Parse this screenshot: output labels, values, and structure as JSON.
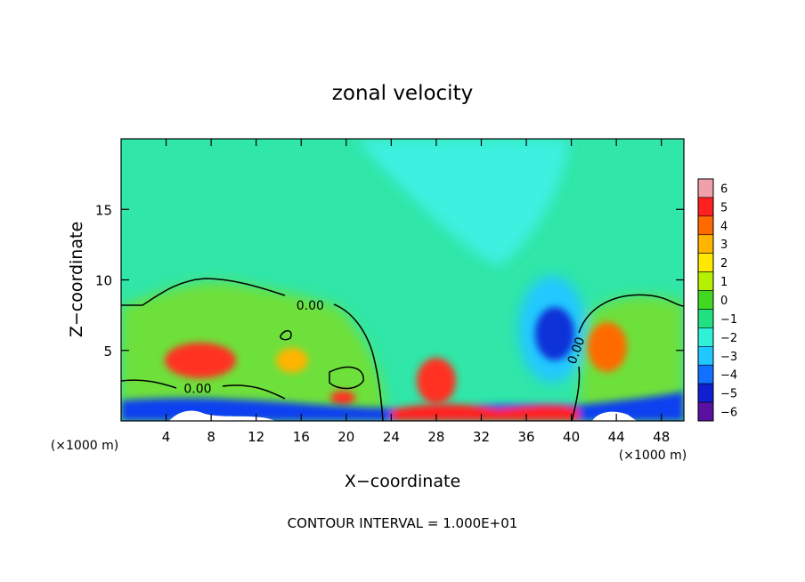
{
  "chart_data": {
    "type": "heatmap",
    "title": "zonal velocity",
    "xlabel": "X−coordinate",
    "ylabel": "Z−coordinate",
    "x_unit_label": "(×1000 m)",
    "x_unit_label_right": "(×1000 m)",
    "xlim": [
      0,
      50
    ],
    "ylim": [
      0,
      20
    ],
    "x_ticks": [
      "4",
      "8",
      "12",
      "16",
      "20",
      "24",
      "28",
      "32",
      "36",
      "40",
      "44",
      "48"
    ],
    "y_ticks": [
      "5",
      "10",
      "15"
    ],
    "colorbar": {
      "levels": [
        "6",
        "5",
        "4",
        "3",
        "2",
        "1",
        "0",
        "−1",
        "−2",
        "−3",
        "−4",
        "−5",
        "−6"
      ],
      "colors": [
        "#f0a0a8",
        "#ff2020",
        "#ff6a00",
        "#ffb400",
        "#ffe800",
        "#b4f000",
        "#40d820",
        "#20e080",
        "#30f0d8",
        "#20c8ff",
        "#1070ff",
        "#1020d0",
        "#5a10a0"
      ]
    },
    "contour_labels": [
      {
        "text": "0.00",
        "x": 16.8,
        "z": 8.2
      },
      {
        "text": "0.00",
        "x": 6.8,
        "z": 2.3
      },
      {
        "text": "0.00",
        "x": 40.4,
        "z": 5.0
      }
    ],
    "anomalies": [
      {
        "x": 7,
        "z": 4.2,
        "value": 4.5
      },
      {
        "x": 14.5,
        "z": 4.4,
        "value": 2.5
      },
      {
        "x": 19.5,
        "z": 1.8,
        "value": 4
      },
      {
        "x": 27.5,
        "z": 2.5,
        "value": 4.5
      },
      {
        "x": 43,
        "z": 5.5,
        "value": 4
      },
      {
        "x": 38.5,
        "z": 6.2,
        "value": -4.5
      },
      {
        "x": 37,
        "z": 9.5,
        "value": -2.5
      },
      {
        "x": 28,
        "z": 14,
        "value": -1.8
      }
    ],
    "grid": false
  },
  "footer": {
    "contour_interval": "CONTOUR INTERVAL = 1.000E+01"
  }
}
